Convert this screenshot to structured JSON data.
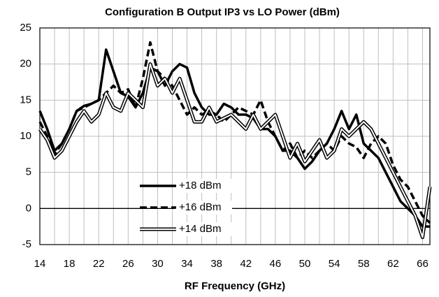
{
  "chart_data": {
    "type": "line",
    "title": "Configuration B Output IP3 vs LO Power (dBm)",
    "x_label": "RF Frequency (GHz)",
    "x": [
      14,
      15,
      16,
      17,
      18,
      19,
      20,
      21,
      22,
      23,
      24,
      25,
      26,
      27,
      28,
      29,
      30,
      31,
      32,
      33,
      34,
      35,
      36,
      37,
      38,
      39,
      40,
      41,
      42,
      43,
      44,
      45,
      46,
      47,
      48,
      49,
      50,
      51,
      52,
      53,
      54,
      55,
      56,
      57,
      58,
      59,
      60,
      61,
      62,
      63,
      64,
      65,
      66,
      67
    ],
    "series": [
      {
        "name": "+18 dBm",
        "color": "#000000",
        "style": "solid",
        "values": [
          13.5,
          11,
          8,
          9,
          11,
          13.5,
          14.2,
          14.5,
          15,
          22,
          19,
          16,
          15.5,
          14,
          16,
          19.5,
          19,
          17,
          19,
          20,
          19.5,
          16,
          14,
          13,
          13,
          14.5,
          14,
          13,
          13,
          12.5,
          11,
          11,
          10,
          8,
          8,
          7,
          5.5,
          6.5,
          8,
          9,
          11,
          13.5,
          11,
          13,
          9,
          8,
          7,
          5,
          3,
          1,
          0,
          -1,
          -2.5,
          -2.5
        ]
      },
      {
        "name": "+16 dBm",
        "color": "#000000",
        "style": "dashed",
        "values": [
          12,
          10,
          7.5,
          9,
          11,
          13.5,
          14,
          14.5,
          15,
          16,
          17,
          16,
          16.5,
          14,
          18,
          23,
          19,
          18,
          17,
          15,
          13,
          14,
          13,
          13.5,
          13,
          12,
          13,
          14,
          13.5,
          13,
          15,
          12,
          10,
          8,
          9,
          7,
          8,
          7,
          8,
          9,
          8,
          10,
          9,
          8.5,
          7,
          9,
          10,
          9,
          6,
          4,
          3,
          1,
          -1,
          -2
        ]
      },
      {
        "name": "+14 dBm",
        "color": "#000000",
        "style": "double",
        "values": [
          11,
          9.5,
          7,
          8,
          10,
          12,
          13.5,
          12,
          13,
          16,
          14,
          13.5,
          16,
          15,
          14,
          20,
          17,
          18,
          16,
          18,
          15,
          12,
          12,
          14,
          12,
          12.5,
          13,
          12,
          11,
          13,
          11,
          12,
          13,
          10,
          7,
          9,
          6.5,
          8,
          9.5,
          7,
          8,
          11,
          10,
          11,
          12,
          11,
          9,
          7,
          5,
          3,
          1,
          -1,
          -4,
          3
        ]
      }
    ],
    "xlim": [
      14,
      67
    ],
    "ylim": [
      -5,
      25
    ],
    "xticks": [
      14,
      18,
      22,
      26,
      30,
      34,
      38,
      42,
      46,
      50,
      54,
      58,
      62,
      66
    ],
    "x_minor_ticks": [
      16,
      20,
      24,
      28,
      32,
      36,
      40,
      44,
      48,
      52,
      56,
      60,
      64
    ],
    "yticks": [
      -5,
      0,
      5,
      10,
      15,
      20,
      25
    ],
    "grid": true
  }
}
